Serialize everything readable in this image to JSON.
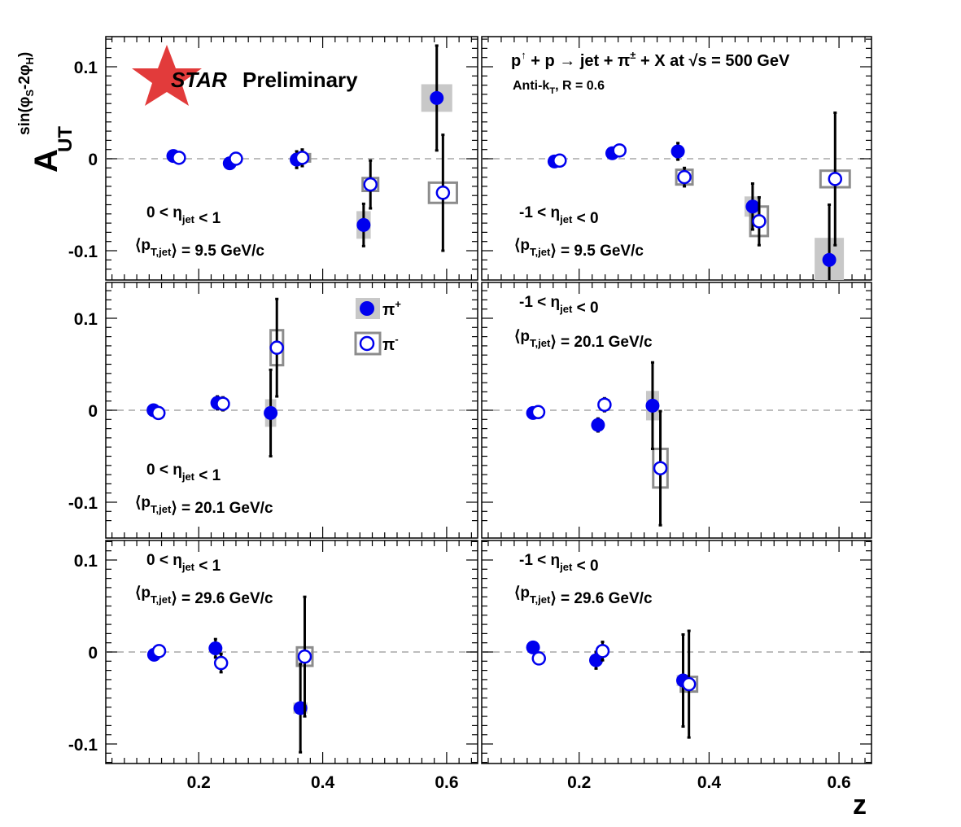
{
  "figure": {
    "y_axis_title": "A_UT^sin(φS-2φH)",
    "x_axis_title": "z",
    "watermark": "STAR Preliminary",
    "process_label": "p↑ + p → jet + π± + X at √s = 500 GeV",
    "algo_label": "Anti-kT, R = 0.6",
    "legend": [
      {
        "name": "π+",
        "style": "filled circle, grey filled box"
      },
      {
        "name": "π-",
        "style": "open circle, grey outline box"
      }
    ]
  },
  "colors": {
    "marker": "#0000ee",
    "error_bar": "#000000",
    "sys_fill": "#c8c8c8",
    "sys_outline": "#8c8c8c",
    "zero_line": "#bdbdbd",
    "star_logo": "#e03030"
  },
  "chart_data": [
    {
      "type": "scatter",
      "row": 0,
      "col": 0,
      "eta_label": "0 < ηjet < 1",
      "pt_label": "⟨pT,jet⟩ = 9.5 GeV/c",
      "xlim": [
        0.05,
        0.65
      ],
      "ylim": [
        -0.13,
        0.135
      ],
      "series": [
        {
          "name": "π+",
          "points": [
            {
              "x": 0.159,
              "y": 0.003,
              "err": 0.002,
              "sys": [
                0.012,
                0.003
              ]
            },
            {
              "x": 0.25,
              "y": -0.005,
              "err": 0.002,
              "sys": [
                0.012,
                0.003
              ]
            },
            {
              "x": 0.358,
              "y": -0.001,
              "err": 0.009,
              "sys": [
                0.016,
                0.004
              ]
            },
            {
              "x": 0.466,
              "y": -0.072,
              "err": 0.023,
              "sys": [
                0.023,
                0.015
              ]
            },
            {
              "x": 0.584,
              "y": 0.066,
              "err": 0.057,
              "sys": [
                0.05,
                0.015
              ]
            }
          ]
        },
        {
          "name": "π-",
          "points": [
            {
              "x": 0.168,
              "y": 0.001,
              "err": 0.002,
              "sys": [
                0.01,
                0.002
              ]
            },
            {
              "x": 0.26,
              "y": 0.0,
              "err": 0.003,
              "sys": [
                0.012,
                0.003
              ]
            },
            {
              "x": 0.367,
              "y": 0.001,
              "err": 0.009,
              "sys": [
                0.025,
                0.004
              ]
            },
            {
              "x": 0.477,
              "y": -0.028,
              "err": 0.026,
              "sys": [
                0.025,
                0.007
              ]
            },
            {
              "x": 0.594,
              "y": -0.037,
              "err": 0.063,
              "sys": [
                0.045,
                0.011
              ]
            }
          ]
        }
      ]
    },
    {
      "type": "scatter",
      "row": 0,
      "col": 1,
      "eta_label": "-1 < ηjet < 0",
      "pt_label": "⟨pT,jet⟩ = 9.5 GeV/c",
      "xlim": [
        0.05,
        0.65
      ],
      "ylim": [
        -0.13,
        0.135
      ],
      "series": [
        {
          "name": "π+",
          "points": [
            {
              "x": 0.162,
              "y": -0.003,
              "err": 0.002,
              "sys": [
                0.01,
                0.003
              ]
            },
            {
              "x": 0.251,
              "y": 0.006,
              "err": 0.003,
              "sys": [
                0.012,
                0.003
              ]
            },
            {
              "x": 0.352,
              "y": 0.008,
              "err": 0.009,
              "sys": [
                0.018,
                0.004
              ]
            },
            {
              "x": 0.467,
              "y": -0.052,
              "err": 0.025,
              "sys": [
                0.025,
                0.011
              ]
            },
            {
              "x": 0.585,
              "y": -0.11,
              "err": 0.06,
              "sys": [
                0.045,
                0.024
              ]
            }
          ]
        },
        {
          "name": "π-",
          "points": [
            {
              "x": 0.17,
              "y": -0.002,
              "err": 0.002,
              "sys": [
                0.01,
                0.002
              ]
            },
            {
              "x": 0.262,
              "y": 0.009,
              "err": 0.003,
              "sys": [
                0.012,
                0.004
              ]
            },
            {
              "x": 0.362,
              "y": -0.02,
              "err": 0.01,
              "sys": [
                0.025,
                0.008
              ]
            },
            {
              "x": 0.477,
              "y": -0.068,
              "err": 0.026,
              "sys": [
                0.027,
                0.016
              ]
            },
            {
              "x": 0.594,
              "y": -0.022,
              "err": 0.072,
              "sys": [
                0.045,
                0.009
              ]
            }
          ]
        }
      ]
    },
    {
      "type": "scatter",
      "row": 1,
      "col": 0,
      "eta_label": "0 < ηjet < 1",
      "pt_label": "⟨pT,jet⟩ = 20.1 GeV/c",
      "xlim": [
        0.05,
        0.65
      ],
      "ylim": [
        -0.13,
        0.135
      ],
      "series": [
        {
          "name": "π+",
          "points": [
            {
              "x": 0.127,
              "y": 0.0,
              "err": 0.002,
              "sys": [
                0.008,
                0.002
              ]
            },
            {
              "x": 0.23,
              "y": 0.008,
              "err": 0.007,
              "sys": [
                0.01,
                0.004
              ]
            },
            {
              "x": 0.316,
              "y": -0.003,
              "err": 0.047,
              "sys": [
                0.018,
                0.015
              ]
            }
          ]
        },
        {
          "name": "π-",
          "points": [
            {
              "x": 0.135,
              "y": -0.003,
              "err": 0.002,
              "sys": [
                0.008,
                0.002
              ]
            },
            {
              "x": 0.239,
              "y": 0.007,
              "err": 0.007,
              "sys": [
                0.012,
                0.004
              ]
            },
            {
              "x": 0.326,
              "y": 0.068,
              "err": 0.053,
              "sys": [
                0.02,
                0.019
              ]
            }
          ]
        }
      ]
    },
    {
      "type": "scatter",
      "row": 1,
      "col": 1,
      "eta_label": "-1 < ηjet < 0",
      "pt_label": "⟨pT,jet⟩ = 20.1 GeV/c",
      "xlim": [
        0.05,
        0.65
      ],
      "ylim": [
        -0.13,
        0.135
      ],
      "series": [
        {
          "name": "π+",
          "points": [
            {
              "x": 0.129,
              "y": -0.003,
              "err": 0.002,
              "sys": [
                0.008,
                0.002
              ]
            },
            {
              "x": 0.229,
              "y": -0.016,
              "err": 0.007,
              "sys": [
                0.01,
                0.003
              ]
            },
            {
              "x": 0.313,
              "y": 0.005,
              "err": 0.047,
              "sys": [
                0.02,
                0.016
              ]
            }
          ]
        },
        {
          "name": "π-",
          "points": [
            {
              "x": 0.137,
              "y": -0.002,
              "err": 0.002,
              "sys": [
                0.008,
                0.002
              ]
            },
            {
              "x": 0.239,
              "y": 0.006,
              "err": 0.007,
              "sys": [
                0.012,
                0.005
              ]
            },
            {
              "x": 0.325,
              "y": -0.063,
              "err": 0.062,
              "sys": [
                0.022,
                0.021
              ]
            }
          ]
        }
      ]
    },
    {
      "type": "scatter",
      "row": 2,
      "col": 0,
      "eta_label": "0 < ηjet < 1",
      "pt_label": "⟨pT,jet⟩ = 29.6 GeV/c",
      "xlim": [
        0.05,
        0.65
      ],
      "ylim": [
        -0.13,
        0.135
      ],
      "series": [
        {
          "name": "π+",
          "points": [
            {
              "x": 0.128,
              "y": -0.003,
              "err": 0.003,
              "sys": [
                0.008,
                0.002
              ]
            },
            {
              "x": 0.227,
              "y": 0.004,
              "err": 0.01,
              "sys": [
                0.01,
                0.003
              ]
            },
            {
              "x": 0.364,
              "y": -0.061,
              "err": 0.048,
              "sys": [
                0.023,
                0.006
              ]
            }
          ]
        },
        {
          "name": "π-",
          "points": [
            {
              "x": 0.136,
              "y": 0.001,
              "err": 0.003,
              "sys": [
                0.008,
                0.002
              ]
            },
            {
              "x": 0.236,
              "y": -0.012,
              "err": 0.01,
              "sys": [
                0.012,
                0.004
              ]
            },
            {
              "x": 0.371,
              "y": -0.005,
              "err": 0.065,
              "sys": [
                0.025,
                0.01
              ]
            }
          ]
        }
      ]
    },
    {
      "type": "scatter",
      "row": 2,
      "col": 1,
      "eta_label": "-1 < ηjet < 0",
      "pt_label": "⟨pT,jet⟩ = 29.6 GeV/c",
      "xlim": [
        0.05,
        0.65
      ],
      "ylim": [
        -0.13,
        0.135
      ],
      "series": [
        {
          "name": "π+",
          "points": [
            {
              "x": 0.129,
              "y": 0.005,
              "err": 0.003,
              "sys": [
                0.008,
                0.002
              ]
            },
            {
              "x": 0.226,
              "y": -0.009,
              "err": 0.009,
              "sys": [
                0.01,
                0.003
              ]
            },
            {
              "x": 0.36,
              "y": -0.031,
              "err": 0.05,
              "sys": [
                0.02,
                0.006
              ]
            }
          ]
        },
        {
          "name": "π-",
          "points": [
            {
              "x": 0.138,
              "y": -0.007,
              "err": 0.003,
              "sys": [
                0.008,
                0.002
              ]
            },
            {
              "x": 0.236,
              "y": 0.001,
              "err": 0.01,
              "sys": [
                0.012,
                0.004
              ]
            },
            {
              "x": 0.369,
              "y": -0.035,
              "err": 0.058,
              "sys": [
                0.025,
                0.008
              ]
            }
          ]
        }
      ]
    }
  ]
}
